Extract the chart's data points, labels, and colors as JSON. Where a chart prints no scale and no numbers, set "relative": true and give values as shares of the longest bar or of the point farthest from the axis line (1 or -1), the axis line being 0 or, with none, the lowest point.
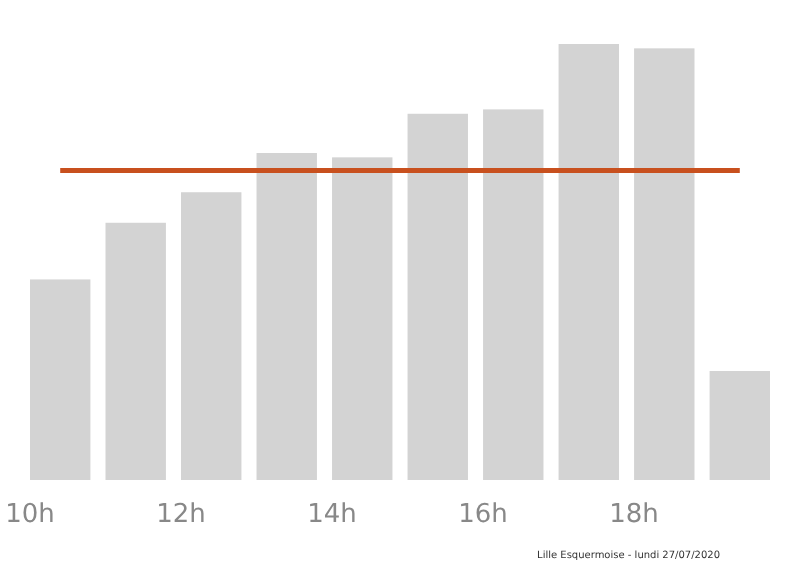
{
  "chart_data": {
    "type": "bar",
    "relative": true,
    "categories": [
      "10h",
      null,
      "12h",
      null,
      "14h",
      null,
      "16h",
      null,
      "18h",
      null
    ],
    "values": [
      0.46,
      0.59,
      0.66,
      0.75,
      0.74,
      0.84,
      0.85,
      1,
      0.99,
      0.25
    ],
    "color": "#d3d3d3",
    "ref_lines": [
      {
        "axis": "y",
        "value": 0.71,
        "color": "#c8501e",
        "line_style": "solid"
      }
    ],
    "annotations": [
      "Lille Esquermoise - lundi 27/07/2020"
    ]
  }
}
